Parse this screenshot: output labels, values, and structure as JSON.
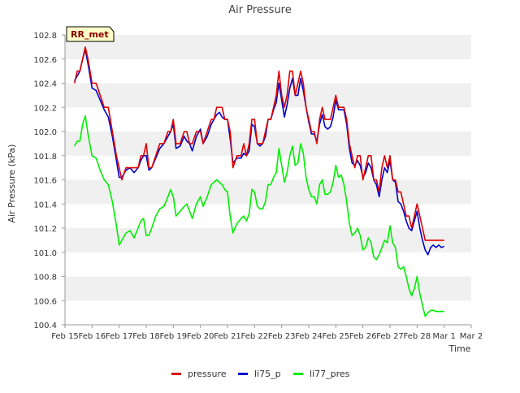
{
  "chart_data": {
    "type": "line",
    "title": "Air Pressure",
    "xlabel": "Time",
    "ylabel": "Air Pressure (kPa)",
    "site_label": "RR_met",
    "ylim": [
      100.4,
      102.8
    ],
    "xlim": [
      "Feb 15",
      "Mar 2"
    ],
    "yticks": [
      100.4,
      100.6,
      100.8,
      101.0,
      101.2,
      101.4,
      101.6,
      101.8,
      102.0,
      102.2,
      102.4,
      102.6,
      102.8
    ],
    "ytick_labels": [
      "100.4",
      "100.6",
      "100.8",
      "101.0",
      "101.2",
      "101.4",
      "101.6",
      "101.8",
      "102.0",
      "102.2",
      "102.4",
      "102.6",
      "102.8"
    ],
    "xticks": [
      "Feb 15",
      "Feb 16",
      "Feb 17",
      "Feb 18",
      "Feb 19",
      "Feb 20",
      "Feb 21",
      "Feb 22",
      "Feb 23",
      "Feb 24",
      "Feb 25",
      "Feb 26",
      "Feb 27",
      "Feb 28",
      "Mar 1",
      "Mar 2"
    ],
    "grid": "horizontal bands",
    "legend_position": "bottom",
    "colors": {
      "pressure": "#dd0000",
      "li75_p": "#0000cc",
      "li77_pres": "#00ee00",
      "band": "#f0f0f0"
    },
    "series": [
      {
        "name": "pressure",
        "x": [
          15.35,
          15.45,
          15.55,
          15.65,
          15.75,
          15.85,
          16.0,
          16.15,
          16.3,
          16.45,
          16.6,
          16.75,
          16.9,
          17.0,
          17.1,
          17.25,
          17.4,
          17.55,
          17.7,
          17.8,
          17.9,
          18.0,
          18.1,
          18.2,
          18.35,
          18.5,
          18.65,
          18.8,
          18.9,
          19.0,
          19.1,
          19.25,
          19.4,
          19.5,
          19.6,
          19.7,
          19.85,
          20.0,
          20.1,
          20.25,
          20.4,
          20.5,
          20.6,
          20.7,
          20.8,
          20.9,
          21.0,
          21.1,
          21.2,
          21.35,
          21.5,
          21.6,
          21.7,
          21.8,
          21.9,
          22.0,
          22.1,
          22.2,
          22.3,
          22.4,
          22.5,
          22.6,
          22.7,
          22.8,
          22.9,
          23.0,
          23.1,
          23.2,
          23.3,
          23.4,
          23.5,
          23.6,
          23.7,
          23.8,
          23.9,
          24.0,
          24.1,
          24.2,
          24.3,
          24.4,
          24.5,
          24.6,
          24.7,
          24.8,
          24.9,
          25.0,
          25.1,
          25.2,
          25.3,
          25.4,
          25.5,
          25.6,
          25.7,
          25.8,
          25.9,
          26.0,
          26.1,
          26.2,
          26.3,
          26.4,
          26.5,
          26.6,
          26.7,
          26.8,
          26.9,
          27.0,
          27.1,
          27.2,
          27.3,
          27.4,
          27.5,
          27.6,
          27.7,
          27.8,
          27.9,
          28.0,
          28.1,
          28.2,
          28.3,
          28.4,
          28.5,
          28.6,
          28.7,
          28.8,
          28.9,
          29.0
        ],
        "values": [
          102.4,
          102.5,
          102.5,
          102.6,
          102.7,
          102.6,
          102.4,
          102.4,
          102.3,
          102.2,
          102.2,
          102.0,
          101.8,
          101.7,
          101.6,
          101.7,
          101.7,
          101.7,
          101.7,
          101.8,
          101.8,
          101.9,
          101.7,
          101.7,
          101.8,
          101.9,
          101.9,
          102.0,
          102.0,
          102.1,
          101.9,
          101.9,
          102.0,
          102.0,
          101.9,
          101.9,
          102.0,
          102.0,
          101.9,
          102.0,
          102.1,
          102.1,
          102.2,
          102.2,
          102.2,
          102.1,
          102.1,
          102.0,
          101.7,
          101.8,
          101.8,
          101.9,
          101.8,
          101.9,
          102.1,
          102.1,
          101.9,
          101.9,
          101.9,
          102.0,
          102.1,
          102.1,
          102.2,
          102.3,
          102.5,
          102.3,
          102.2,
          102.3,
          102.5,
          102.5,
          102.3,
          102.4,
          102.5,
          102.4,
          102.2,
          102.1,
          102.0,
          102.0,
          101.9,
          102.1,
          102.2,
          102.1,
          102.1,
          102.1,
          102.2,
          102.3,
          102.2,
          102.2,
          102.2,
          102.1,
          101.9,
          101.8,
          101.7,
          101.8,
          101.8,
          101.6,
          101.7,
          101.8,
          101.8,
          101.6,
          101.6,
          101.5,
          101.7,
          101.8,
          101.7,
          101.8,
          101.6,
          101.6,
          101.5,
          101.5,
          101.4,
          101.3,
          101.3,
          101.2,
          101.3,
          101.4,
          101.3,
          101.2,
          101.1,
          101.1,
          101.1,
          101.1,
          101.1,
          101.1,
          101.1,
          101.1
        ],
        "color": "#dd0000"
      },
      {
        "name": "li75_p",
        "x": [
          15.35,
          15.45,
          15.55,
          15.65,
          15.75,
          15.85,
          16.0,
          16.15,
          16.3,
          16.45,
          16.6,
          16.75,
          16.9,
          17.0,
          17.1,
          17.25,
          17.4,
          17.55,
          17.7,
          17.8,
          17.9,
          18.0,
          18.1,
          18.2,
          18.35,
          18.5,
          18.65,
          18.8,
          18.9,
          19.0,
          19.1,
          19.25,
          19.4,
          19.5,
          19.6,
          19.7,
          19.85,
          20.0,
          20.1,
          20.25,
          20.4,
          20.5,
          20.6,
          20.7,
          20.8,
          20.9,
          21.0,
          21.1,
          21.2,
          21.35,
          21.5,
          21.6,
          21.7,
          21.8,
          21.9,
          22.0,
          22.1,
          22.2,
          22.3,
          22.4,
          22.5,
          22.6,
          22.7,
          22.8,
          22.9,
          23.0,
          23.1,
          23.2,
          23.3,
          23.4,
          23.5,
          23.6,
          23.7,
          23.8,
          23.9,
          24.0,
          24.1,
          24.2,
          24.3,
          24.4,
          24.5,
          24.6,
          24.7,
          24.8,
          24.9,
          25.0,
          25.1,
          25.2,
          25.3,
          25.4,
          25.5,
          25.6,
          25.7,
          25.8,
          25.9,
          26.0,
          26.1,
          26.2,
          26.3,
          26.4,
          26.5,
          26.6,
          26.7,
          26.8,
          26.9,
          27.0,
          27.1,
          27.2,
          27.3,
          27.4,
          27.5,
          27.6,
          27.7,
          27.8,
          27.9,
          28.0,
          28.1,
          28.2,
          28.3,
          28.4,
          28.5,
          28.6,
          28.7,
          28.8,
          28.9,
          29.0
        ],
        "values": [
          102.42,
          102.46,
          102.5,
          102.6,
          102.68,
          102.56,
          102.36,
          102.34,
          102.26,
          102.18,
          102.12,
          101.96,
          101.76,
          101.62,
          101.62,
          101.68,
          101.7,
          101.66,
          101.7,
          101.76,
          101.8,
          101.8,
          101.68,
          101.7,
          101.78,
          101.86,
          101.9,
          101.96,
          102.0,
          102.06,
          101.86,
          101.88,
          101.96,
          101.92,
          101.9,
          101.84,
          101.96,
          102.02,
          101.9,
          101.96,
          102.06,
          102.1,
          102.14,
          102.16,
          102.12,
          102.1,
          102.1,
          101.94,
          101.74,
          101.78,
          101.78,
          101.82,
          101.8,
          101.84,
          102.06,
          102.04,
          101.9,
          101.88,
          101.9,
          101.96,
          102.1,
          102.1,
          102.18,
          102.24,
          102.4,
          102.26,
          102.12,
          102.22,
          102.36,
          102.44,
          102.3,
          102.3,
          102.44,
          102.34,
          102.2,
          102.08,
          101.98,
          101.98,
          101.92,
          102.06,
          102.14,
          102.04,
          102.02,
          102.04,
          102.12,
          102.26,
          102.18,
          102.18,
          102.18,
          102.06,
          101.86,
          101.74,
          101.72,
          101.76,
          101.72,
          101.62,
          101.66,
          101.74,
          101.7,
          101.6,
          101.56,
          101.46,
          101.6,
          101.7,
          101.66,
          101.76,
          101.6,
          101.58,
          101.42,
          101.4,
          101.34,
          101.26,
          101.2,
          101.18,
          101.26,
          101.34,
          101.2,
          101.1,
          101.02,
          100.98,
          101.04,
          101.06,
          101.04,
          101.06,
          101.04,
          101.05
        ],
        "color": "#0000cc"
      },
      {
        "name": "li77_pres",
        "x": [
          15.35,
          15.45,
          15.55,
          15.65,
          15.75,
          15.85,
          16.0,
          16.15,
          16.3,
          16.45,
          16.6,
          16.75,
          16.9,
          17.0,
          17.1,
          17.25,
          17.4,
          17.55,
          17.7,
          17.8,
          17.9,
          18.0,
          18.1,
          18.2,
          18.35,
          18.5,
          18.65,
          18.8,
          18.9,
          19.0,
          19.1,
          19.25,
          19.4,
          19.5,
          19.6,
          19.7,
          19.85,
          20.0,
          20.1,
          20.25,
          20.4,
          20.5,
          20.6,
          20.7,
          20.8,
          20.9,
          21.0,
          21.1,
          21.2,
          21.35,
          21.5,
          21.6,
          21.7,
          21.8,
          21.9,
          22.0,
          22.1,
          22.2,
          22.3,
          22.4,
          22.5,
          22.6,
          22.7,
          22.8,
          22.9,
          23.0,
          23.1,
          23.2,
          23.3,
          23.4,
          23.5,
          23.6,
          23.7,
          23.8,
          23.9,
          24.0,
          24.1,
          24.2,
          24.3,
          24.4,
          24.5,
          24.6,
          24.7,
          24.8,
          24.9,
          25.0,
          25.1,
          25.2,
          25.3,
          25.4,
          25.5,
          25.6,
          25.7,
          25.8,
          25.9,
          26.0,
          26.1,
          26.2,
          26.3,
          26.4,
          26.5,
          26.6,
          26.7,
          26.8,
          26.9,
          27.0,
          27.1,
          27.2,
          27.3,
          27.4,
          27.5,
          27.6,
          27.7,
          27.8,
          27.9,
          28.0,
          28.1,
          28.2,
          28.3,
          28.4,
          28.5,
          28.6,
          28.7,
          28.8,
          28.9,
          29.0
        ],
        "values": [
          101.88,
          101.92,
          101.92,
          102.06,
          102.13,
          101.98,
          101.8,
          101.78,
          101.68,
          101.6,
          101.56,
          101.42,
          101.22,
          101.06,
          101.1,
          101.16,
          101.18,
          101.12,
          101.2,
          101.26,
          101.28,
          101.14,
          101.14,
          101.2,
          101.3,
          101.36,
          101.38,
          101.46,
          101.52,
          101.46,
          101.3,
          101.34,
          101.38,
          101.4,
          101.34,
          101.28,
          101.4,
          101.46,
          101.38,
          101.46,
          101.56,
          101.58,
          101.6,
          101.58,
          101.56,
          101.52,
          101.5,
          101.3,
          101.16,
          101.24,
          101.28,
          101.3,
          101.26,
          101.32,
          101.52,
          101.5,
          101.38,
          101.36,
          101.36,
          101.42,
          101.56,
          101.56,
          101.62,
          101.66,
          101.86,
          101.72,
          101.58,
          101.66,
          101.8,
          101.88,
          101.72,
          101.74,
          101.9,
          101.82,
          101.62,
          101.52,
          101.46,
          101.46,
          101.4,
          101.56,
          101.6,
          101.48,
          101.48,
          101.5,
          101.58,
          101.72,
          101.62,
          101.64,
          101.56,
          101.42,
          101.24,
          101.14,
          101.16,
          101.2,
          101.14,
          101.02,
          101.04,
          101.12,
          101.08,
          100.96,
          100.94,
          100.98,
          101.04,
          101.1,
          101.08,
          101.22,
          101.08,
          101.04,
          100.88,
          100.86,
          100.88,
          100.8,
          100.7,
          100.64,
          100.7,
          100.8,
          100.66,
          100.56,
          100.47,
          100.5,
          100.52,
          100.52,
          100.51,
          100.51,
          100.51,
          100.51
        ],
        "color": "#00ee00"
      }
    ]
  }
}
